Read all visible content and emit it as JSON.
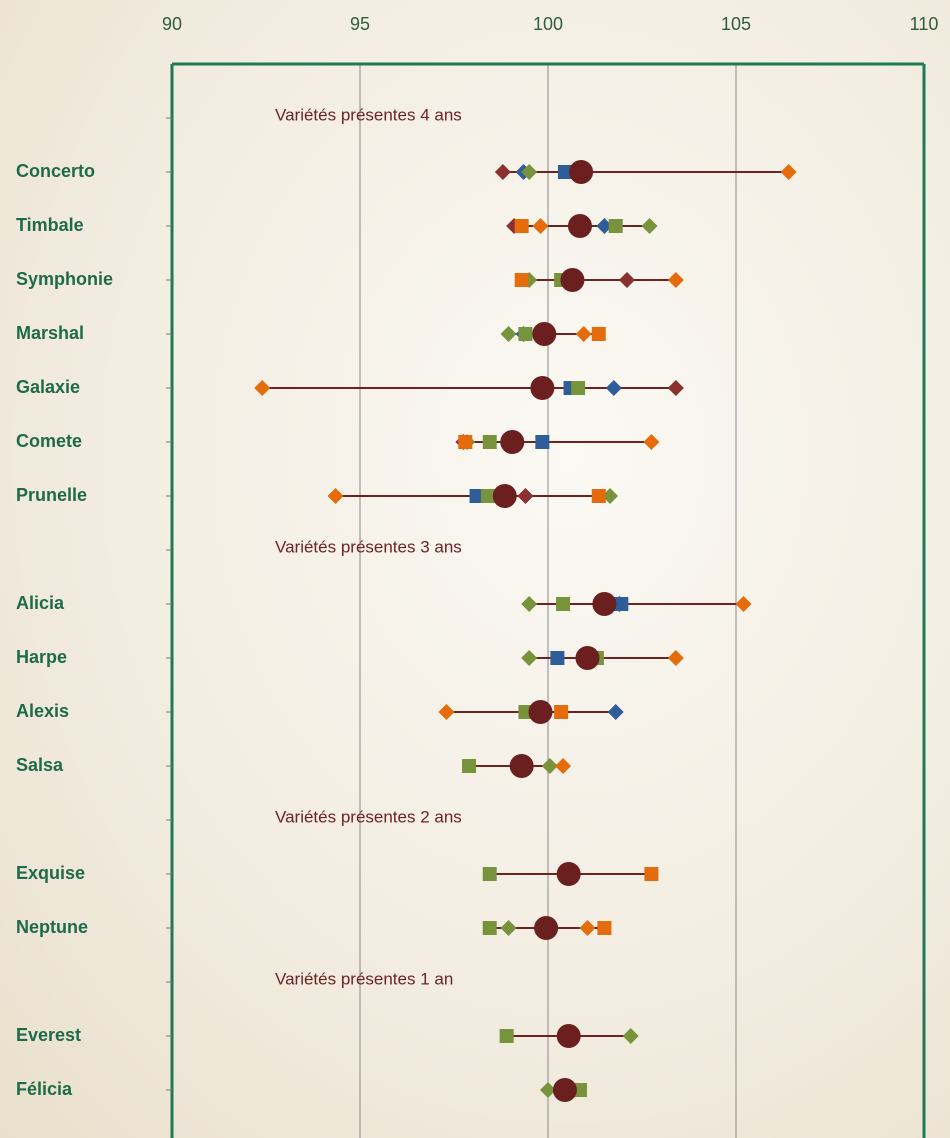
{
  "chart_data": {
    "type": "dotrange",
    "categories": [
      null,
      "Concerto",
      "Timbale",
      "Symphonie",
      "Marshal",
      "Galaxie",
      "Comete",
      "Prunelle",
      null,
      "Alicia",
      "Harpe",
      "Alexis",
      "Salsa",
      null,
      "Exquise",
      "Neptune",
      null,
      "Everest",
      "Félicia"
    ],
    "annotations": [
      "Variétés présentes 4 ans",
      "Variétés présentes 3 ans",
      "Variétés présentes 2 ans",
      "Variétés présentes 1 an"
    ],
    "xlim": [
      90,
      110
    ],
    "xticks": [
      90,
      95,
      100,
      105,
      110
    ],
    "grid": true,
    "range_color": "#6e2323",
    "series": [
      {
        "marker": "diamond",
        "color": "#8b2f2f",
        "values": [
          null,
          98.8,
          99.1,
          102.1,
          null,
          103.4,
          97.75,
          99.4,
          null,
          null,
          null,
          null,
          null,
          null,
          null,
          null,
          null,
          null,
          null
        ]
      },
      {
        "marker": "diamond",
        "color": "#2f5d9a",
        "values": [
          null,
          99.35,
          101.5,
          null,
          99.35,
          101.75,
          null,
          null,
          null,
          101.9,
          null,
          101.8,
          null,
          null,
          null,
          null,
          null,
          null,
          null
        ]
      },
      {
        "marker": "diamond",
        "color": "#77933c",
        "values": [
          null,
          99.5,
          102.7,
          99.5,
          98.95,
          null,
          97.85,
          101.65,
          null,
          99.5,
          99.5,
          null,
          100.05,
          null,
          null,
          98.95,
          null,
          102.2,
          100.0
        ]
      },
      {
        "marker": "diamond",
        "color": "#e46c0a",
        "values": [
          null,
          106.4,
          99.8,
          103.4,
          100.95,
          92.4,
          102.75,
          94.35,
          null,
          105.2,
          103.4,
          97.3,
          100.4,
          null,
          null,
          101.05,
          null,
          null,
          null
        ]
      },
      {
        "marker": "square",
        "color": "#2f5d9a",
        "values": [
          null,
          100.45,
          null,
          null,
          null,
          100.6,
          99.85,
          98.1,
          null,
          101.95,
          100.25,
          null,
          null,
          null,
          null,
          null,
          null,
          null,
          null
        ]
      },
      {
        "marker": "square",
        "color": "#77933c",
        "values": [
          null,
          null,
          101.8,
          100.35,
          99.4,
          100.8,
          98.45,
          98.4,
          null,
          100.4,
          101.3,
          99.4,
          97.9,
          null,
          98.45,
          98.45,
          null,
          98.9,
          100.85
        ]
      },
      {
        "marker": "square",
        "color": "#e46c0a",
        "values": [
          null,
          null,
          99.3,
          99.3,
          101.35,
          null,
          97.8,
          101.35,
          null,
          null,
          null,
          100.35,
          null,
          null,
          102.75,
          101.5,
          null,
          null,
          null
        ]
      },
      {
        "marker": "circle",
        "color": "#6b1f1f",
        "values": [
          null,
          100.88,
          100.85,
          100.65,
          99.9,
          99.85,
          99.05,
          98.85,
          null,
          101.5,
          101.05,
          99.8,
          99.3,
          null,
          100.55,
          99.95,
          null,
          100.55,
          100.45
        ]
      }
    ]
  }
}
